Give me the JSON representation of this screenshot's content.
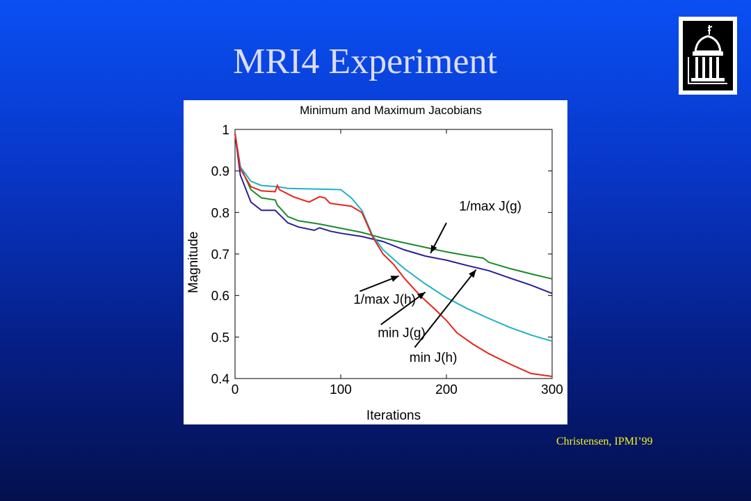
{
  "slide": {
    "title": "MRI4 Experiment",
    "citation": "Christensen, IPMI’99",
    "logo_icon": "university-dome-icon"
  },
  "colors": {
    "background_top": "#0a4ff3",
    "background_bottom": "#04104e",
    "title": "#dcdcf4",
    "citation": "#f2f21e"
  },
  "chart_data": {
    "type": "line",
    "title": "Minimum and Maximum Jacobians",
    "xlabel": "Iterations",
    "ylabel": "Magnitude",
    "xlim": [
      0,
      300
    ],
    "ylim": [
      0.4,
      1.0
    ],
    "xticks": [
      0,
      100,
      200,
      300
    ],
    "yticks": [
      0.4,
      0.5,
      0.6,
      0.7,
      0.8,
      0.9,
      1.0
    ],
    "grid": false,
    "series": [
      {
        "name": "1/max J(g)",
        "color": "#1a8a2a",
        "points": [
          [
            0,
            0.99
          ],
          [
            5,
            0.91
          ],
          [
            15,
            0.855
          ],
          [
            25,
            0.835
          ],
          [
            38,
            0.83
          ],
          [
            40,
            0.818
          ],
          [
            50,
            0.79
          ],
          [
            60,
            0.78
          ],
          [
            80,
            0.772
          ],
          [
            100,
            0.762
          ],
          [
            120,
            0.752
          ],
          [
            140,
            0.738
          ],
          [
            160,
            0.727
          ],
          [
            180,
            0.716
          ],
          [
            200,
            0.705
          ],
          [
            220,
            0.696
          ],
          [
            235,
            0.69
          ],
          [
            240,
            0.68
          ],
          [
            260,
            0.665
          ],
          [
            280,
            0.652
          ],
          [
            300,
            0.64
          ]
        ]
      },
      {
        "name": "min J(h)",
        "color": "#2a1f96",
        "points": [
          [
            0,
            0.99
          ],
          [
            5,
            0.89
          ],
          [
            15,
            0.825
          ],
          [
            25,
            0.805
          ],
          [
            38,
            0.805
          ],
          [
            42,
            0.795
          ],
          [
            50,
            0.775
          ],
          [
            60,
            0.765
          ],
          [
            75,
            0.757
          ],
          [
            80,
            0.763
          ],
          [
            90,
            0.755
          ],
          [
            100,
            0.75
          ],
          [
            120,
            0.742
          ],
          [
            140,
            0.73
          ],
          [
            160,
            0.71
          ],
          [
            180,
            0.695
          ],
          [
            200,
            0.685
          ],
          [
            220,
            0.672
          ],
          [
            240,
            0.66
          ],
          [
            260,
            0.642
          ],
          [
            280,
            0.625
          ],
          [
            300,
            0.605
          ]
        ]
      },
      {
        "name": "min J(g)",
        "color": "#1fb2c2",
        "points": [
          [
            0,
            0.99
          ],
          [
            5,
            0.91
          ],
          [
            15,
            0.875
          ],
          [
            25,
            0.865
          ],
          [
            40,
            0.862
          ],
          [
            50,
            0.858
          ],
          [
            100,
            0.855
          ],
          [
            110,
            0.835
          ],
          [
            120,
            0.805
          ],
          [
            130,
            0.745
          ],
          [
            140,
            0.71
          ],
          [
            160,
            0.665
          ],
          [
            180,
            0.628
          ],
          [
            200,
            0.595
          ],
          [
            220,
            0.568
          ],
          [
            240,
            0.545
          ],
          [
            260,
            0.523
          ],
          [
            280,
            0.505
          ],
          [
            300,
            0.49
          ]
        ]
      },
      {
        "name": "1/max J(h)",
        "color": "#e8221a",
        "points": [
          [
            0,
            0.99
          ],
          [
            5,
            0.905
          ],
          [
            15,
            0.862
          ],
          [
            25,
            0.852
          ],
          [
            38,
            0.85
          ],
          [
            40,
            0.865
          ],
          [
            42,
            0.855
          ],
          [
            55,
            0.838
          ],
          [
            70,
            0.825
          ],
          [
            80,
            0.838
          ],
          [
            85,
            0.835
          ],
          [
            90,
            0.822
          ],
          [
            110,
            0.815
          ],
          [
            120,
            0.8
          ],
          [
            130,
            0.742
          ],
          [
            140,
            0.7
          ],
          [
            150,
            0.675
          ],
          [
            160,
            0.642
          ],
          [
            175,
            0.6
          ],
          [
            190,
            0.565
          ],
          [
            200,
            0.54
          ],
          [
            210,
            0.51
          ],
          [
            225,
            0.483
          ],
          [
            240,
            0.46
          ],
          [
            260,
            0.435
          ],
          [
            280,
            0.412
          ],
          [
            300,
            0.405
          ]
        ]
      }
    ],
    "annotations": [
      {
        "text": "1/max J(g)",
        "series": "1/max J(g)"
      },
      {
        "text": "1/max J(h)",
        "series": "1/max J(h)"
      },
      {
        "text": "min J(g)",
        "series": "min J(g)"
      },
      {
        "text": "min J(h)",
        "series": "min J(h)"
      }
    ]
  }
}
